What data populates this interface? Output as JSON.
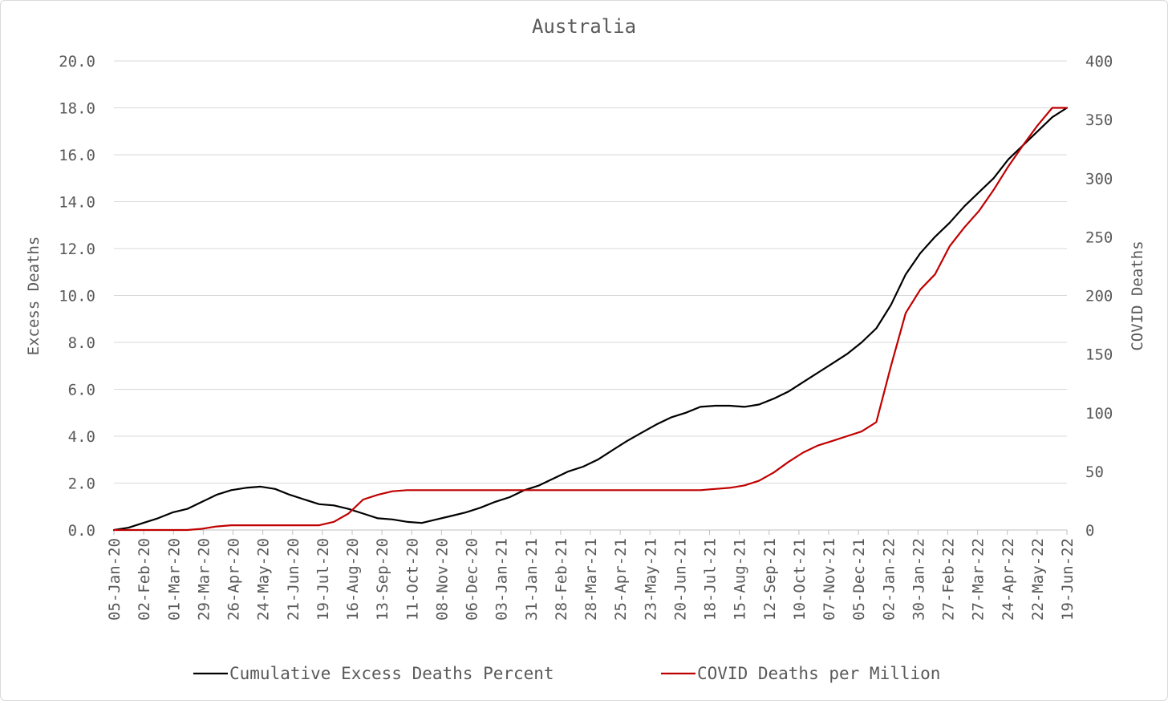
{
  "chart_data": {
    "type": "line",
    "title": "Australia",
    "ylabel": "Excess Deaths",
    "y2label": "COVID Deaths",
    "ylim": [
      0,
      20
    ],
    "y2lim": [
      0,
      400
    ],
    "y_ticks": [
      "0.0",
      "2.0",
      "4.0",
      "6.0",
      "8.0",
      "10.0",
      "12.0",
      "14.0",
      "16.0",
      "18.0",
      "20.0"
    ],
    "y2_ticks": [
      "0",
      "50",
      "100",
      "150",
      "200",
      "250",
      "300",
      "350",
      "400"
    ],
    "x_ticks": [
      "05-Jan-20",
      "02-Feb-20",
      "01-Mar-20",
      "29-Mar-20",
      "26-Apr-20",
      "24-May-20",
      "21-Jun-20",
      "19-Jul-20",
      "16-Aug-20",
      "13-Sep-20",
      "11-Oct-20",
      "08-Nov-20",
      "06-Dec-20",
      "03-Jan-21",
      "31-Jan-21",
      "28-Feb-21",
      "28-Mar-21",
      "25-Apr-21",
      "23-May-21",
      "20-Jun-21",
      "18-Jul-21",
      "15-Aug-21",
      "12-Sep-21",
      "10-Oct-21",
      "07-Nov-21",
      "05-Dec-21",
      "02-Jan-22",
      "30-Jan-22",
      "27-Feb-22",
      "27-Mar-22",
      "24-Apr-22",
      "22-May-22",
      "19-Jun-22"
    ],
    "legend_position": "bottom",
    "grid": true,
    "series": [
      {
        "name": "Cumulative Excess Deaths Percent",
        "axis": "left",
        "color": "#000000",
        "x_weeks": [
          0,
          2,
          4,
          6,
          8,
          10,
          12,
          14,
          16,
          18,
          20,
          22,
          24,
          26,
          28,
          30,
          32,
          34,
          36,
          38,
          40,
          42,
          44,
          46,
          48,
          50,
          52,
          54,
          56,
          58,
          60,
          62,
          64,
          66,
          68,
          70,
          72,
          74,
          76,
          78,
          80,
          82,
          84,
          86,
          88,
          90,
          92,
          94,
          96,
          98,
          100,
          102,
          104,
          106,
          108,
          110,
          112,
          114,
          116,
          118,
          120,
          122,
          124,
          126,
          128,
          130
        ],
        "values": [
          0.0,
          0.1,
          0.3,
          0.5,
          0.75,
          0.9,
          1.2,
          1.5,
          1.7,
          1.8,
          1.85,
          1.75,
          1.5,
          1.3,
          1.1,
          1.05,
          0.9,
          0.7,
          0.5,
          0.45,
          0.35,
          0.3,
          0.45,
          0.6,
          0.75,
          0.95,
          1.2,
          1.4,
          1.7,
          1.9,
          2.2,
          2.5,
          2.7,
          3.0,
          3.4,
          3.8,
          4.15,
          4.5,
          4.8,
          5.0,
          5.25,
          5.3,
          5.3,
          5.25,
          5.35,
          5.6,
          5.9,
          6.3,
          6.7,
          7.1,
          7.5,
          8.0,
          8.6,
          9.6,
          10.9,
          11.8,
          12.5,
          13.1,
          13.8,
          14.4,
          15.0,
          15.8,
          16.4,
          17.0,
          17.6,
          18.0
        ]
      },
      {
        "name": "COVID Deaths per Million",
        "axis": "right",
        "color": "#c00000",
        "x_weeks": [
          0,
          4,
          8,
          10,
          12,
          14,
          16,
          18,
          20,
          22,
          24,
          26,
          28,
          30,
          32,
          34,
          36,
          38,
          40,
          44,
          50,
          60,
          70,
          80,
          82,
          84,
          86,
          88,
          90,
          92,
          94,
          96,
          98,
          100,
          102,
          104,
          106,
          108,
          110,
          112,
          114,
          116,
          118,
          120,
          122,
          124,
          126,
          128,
          130
        ],
        "values": [
          0,
          0,
          0,
          0,
          1,
          3,
          4,
          4,
          4,
          4,
          4,
          4,
          4,
          7,
          14,
          26,
          30,
          33,
          34,
          34,
          34,
          34,
          34,
          34,
          35,
          36,
          38,
          42,
          49,
          58,
          66,
          72,
          76,
          80,
          84,
          92,
          140,
          185,
          205,
          218,
          242,
          258,
          272,
          290,
          310,
          328,
          345,
          360,
          360
        ]
      }
    ]
  }
}
